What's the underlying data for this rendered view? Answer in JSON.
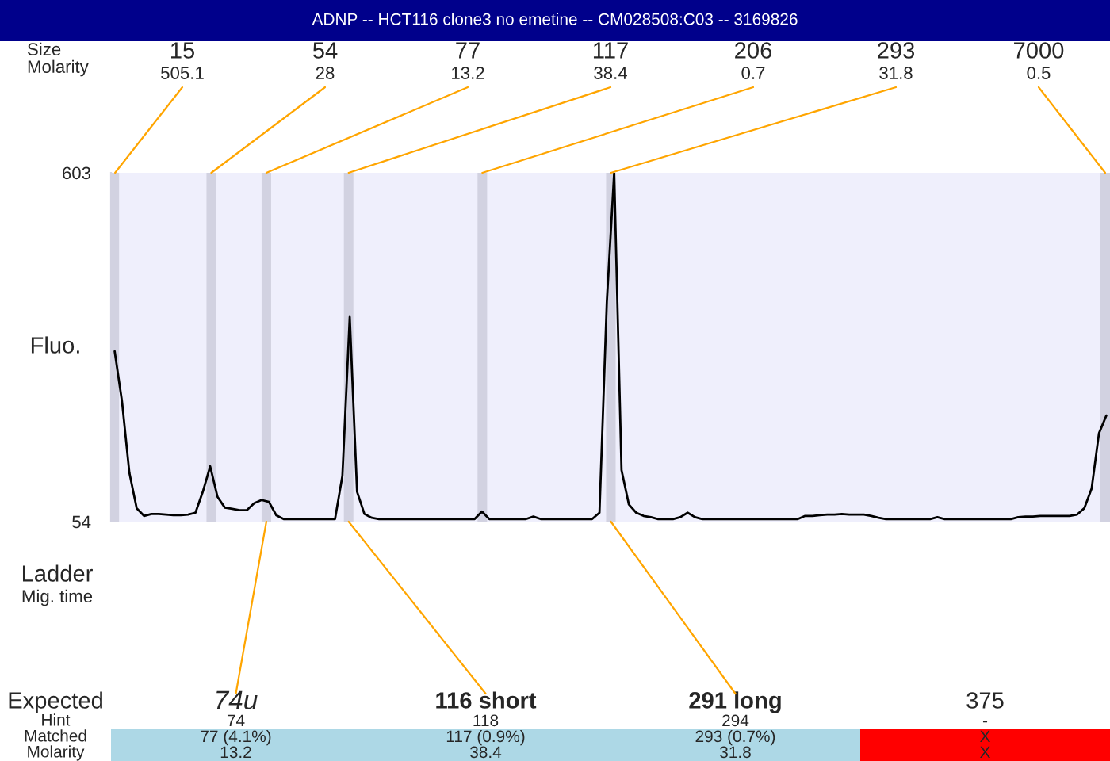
{
  "chart_data": [
    {
      "type": "line",
      "title": "ADNP -- HCT116 clone3 no emetine -- CM028508:C03 -- 3169826",
      "ylabel": "Fluo.",
      "categories": [
        null,
        null,
        null,
        null,
        null,
        null,
        null,
        null,
        null,
        null,
        null,
        null,
        null,
        null,
        null,
        null,
        null,
        null,
        null,
        null,
        null,
        null,
        null,
        null,
        null,
        null,
        null,
        null,
        null,
        null,
        null,
        null,
        null,
        null,
        null,
        null,
        null,
        null,
        null,
        null,
        null,
        null,
        null,
        null,
        null,
        null,
        null,
        null,
        null,
        null,
        null,
        null,
        null,
        null,
        null,
        null,
        null,
        null,
        null,
        null,
        null,
        null,
        null,
        null,
        null,
        null,
        null,
        null,
        null,
        null,
        null,
        null,
        null,
        null,
        null,
        null,
        null,
        null,
        null,
        null,
        null,
        null,
        null,
        null,
        null,
        null,
        null,
        null,
        null,
        null,
        null,
        null,
        null,
        null,
        null,
        null,
        null,
        null,
        null,
        null,
        null,
        null,
        null,
        null,
        null,
        null,
        null,
        null,
        null,
        null,
        null,
        null,
        null,
        null,
        null,
        null,
        null,
        null,
        null,
        null,
        null,
        null,
        null,
        null,
        null,
        null,
        null,
        null,
        null,
        null,
        null,
        null,
        null,
        null,
        null,
        null
      ],
      "series": [
        {
          "color": "#000000",
          "values": [
            322,
            243,
            131,
            75,
            63,
            66,
            66,
            65,
            64,
            64,
            65,
            68,
            101,
            141,
            93,
            76,
            74,
            72,
            72,
            83,
            88,
            85,
            64,
            58,
            58,
            58,
            58,
            58,
            58,
            58,
            58,
            126,
            376,
            101,
            66,
            60,
            58,
            58,
            58,
            58,
            58,
            58,
            58,
            58,
            58,
            58,
            58,
            58,
            58,
            58,
            70,
            58,
            58,
            58,
            58,
            58,
            58,
            62,
            58,
            58,
            58,
            58,
            58,
            58,
            58,
            58,
            68,
            400,
            603,
            135,
            81,
            68,
            63,
            61,
            58,
            58,
            58,
            61,
            68,
            61,
            58,
            58,
            58,
            58,
            58,
            58,
            58,
            58,
            58,
            58,
            58,
            58,
            58,
            58,
            63,
            63,
            64,
            65,
            65,
            66,
            65,
            65,
            65,
            63,
            60,
            58,
            58,
            58,
            58,
            58,
            58,
            58,
            61,
            58,
            58,
            58,
            58,
            58,
            58,
            58,
            58,
            58,
            58,
            61,
            62,
            62,
            63,
            63,
            63,
            63,
            63,
            65,
            75,
            106,
            193,
            221
          ]
        }
      ],
      "ylim": [
        54,
        603
      ],
      "yticks": [
        54,
        603
      ],
      "tick_labels": "y",
      "annotations": [
        "Size",
        "Molarity",
        "Ladder",
        "Mig. time",
        "15\n505.1",
        "54\n28",
        "77\n13.2",
        "117\n38.4",
        "206\n0.7",
        "293\n31.8",
        "7000\n0.5"
      ]
    },
    {
      "type": "other",
      "categories": [
        "74u",
        "116 short",
        "291 long",
        "375"
      ],
      "annotations": [
        "Expected"
      ],
      "series": [
        {
          "name": "Hint",
          "values": [
            74,
            118,
            294,
            null
          ],
          "value_labels": [
            "74",
            "118",
            "294",
            "-"
          ]
        },
        {
          "name": "Matched",
          "values": [
            77,
            117,
            293,
            null
          ],
          "value_labels": [
            "77 (4.1%)",
            "117 (0.9%)",
            "293 (0.7%)",
            "X"
          ],
          "colors": [
            "#add8e6",
            "#add8e6",
            "#add8e6",
            "#ff0000"
          ]
        },
        {
          "name": "Molarity",
          "values": [
            13.2,
            38.4,
            31.8,
            null
          ],
          "value_labels": [
            "13.2",
            "38.4",
            "31.8",
            "X"
          ],
          "colors": [
            "#add8e6",
            "#add8e6",
            "#add8e6",
            "#ff0000"
          ]
        }
      ]
    }
  ]
}
